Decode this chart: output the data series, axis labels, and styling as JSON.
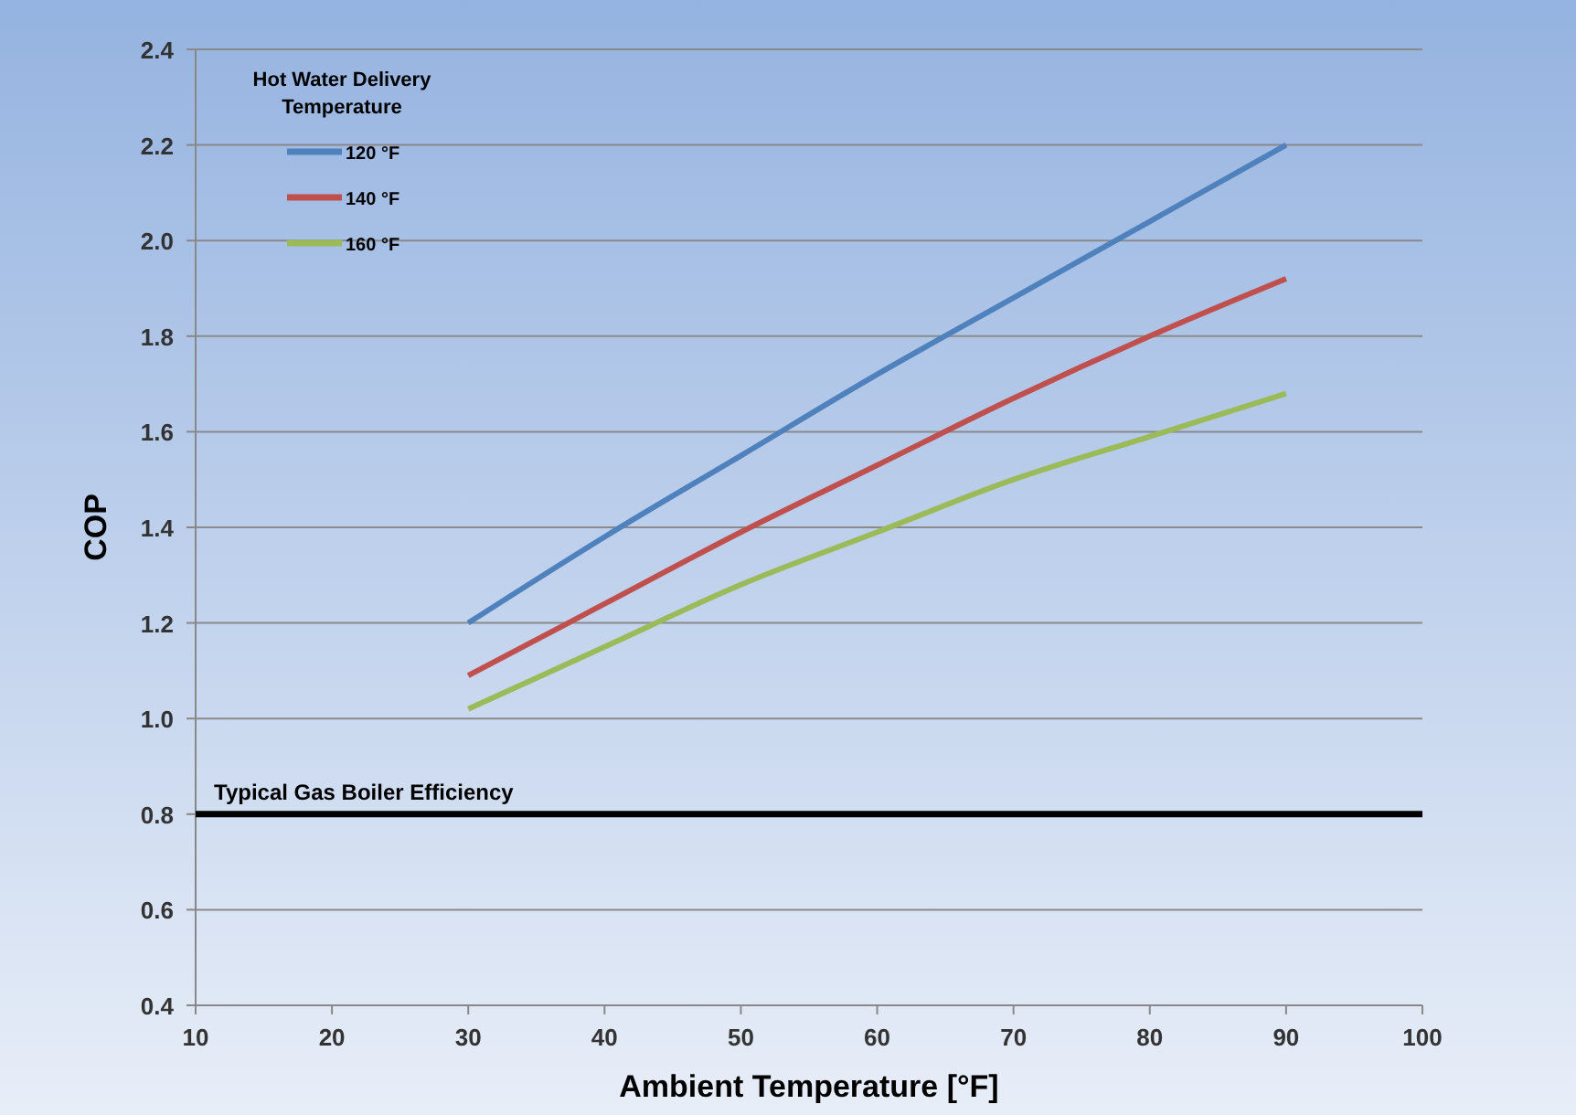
{
  "chart_data": {
    "type": "line",
    "xlabel": "Ambient Temperature [°F]",
    "ylabel": "COP",
    "legend_title": "Hot Water Delivery Temperature",
    "legend": "top left",
    "grid": "y",
    "line_style": "solid",
    "marker": "none",
    "x": [
      30,
      40,
      50,
      60,
      70,
      80,
      90
    ],
    "series": [
      {
        "name": "120 °F",
        "color": "#4f81bd",
        "values": [
          1.2,
          1.38,
          1.55,
          1.72,
          1.88,
          2.04,
          2.2
        ]
      },
      {
        "name": "140 °F",
        "color": "#c0504d",
        "values": [
          1.09,
          1.24,
          1.39,
          1.53,
          1.67,
          1.8,
          1.92
        ]
      },
      {
        "name": "160 °F",
        "color": "#9bbb59",
        "values": [
          1.02,
          1.15,
          1.28,
          1.39,
          1.5,
          1.59,
          1.68
        ]
      }
    ],
    "xlim": [
      10,
      100
    ],
    "xticks": [
      10,
      20,
      30,
      40,
      50,
      60,
      70,
      80,
      90,
      100
    ],
    "ylim": [
      0.4,
      2.4
    ],
    "yticks": [
      {
        "value": 0.4,
        "label": "0.4"
      },
      {
        "value": 0.6,
        "label": "0.6"
      },
      {
        "value": 0.8,
        "label": "0.8"
      },
      {
        "value": 1.0,
        "label": "1.0"
      },
      {
        "value": 1.2,
        "label": "1.2"
      },
      {
        "value": 1.4,
        "label": "1.4"
      },
      {
        "value": 1.6,
        "label": "1.6"
      },
      {
        "value": 1.8,
        "label": "1.8"
      },
      {
        "value": 2.0,
        "label": "2.0"
      },
      {
        "value": 2.2,
        "label": "2.2"
      },
      {
        "value": 2.4,
        "label": "2.4"
      }
    ],
    "ref_lines": [
      {
        "axis": "y",
        "value": 0.8,
        "label": "Typical Gas Boiler Efficiency",
        "color": "#000000",
        "line_style": "solid"
      }
    ]
  }
}
